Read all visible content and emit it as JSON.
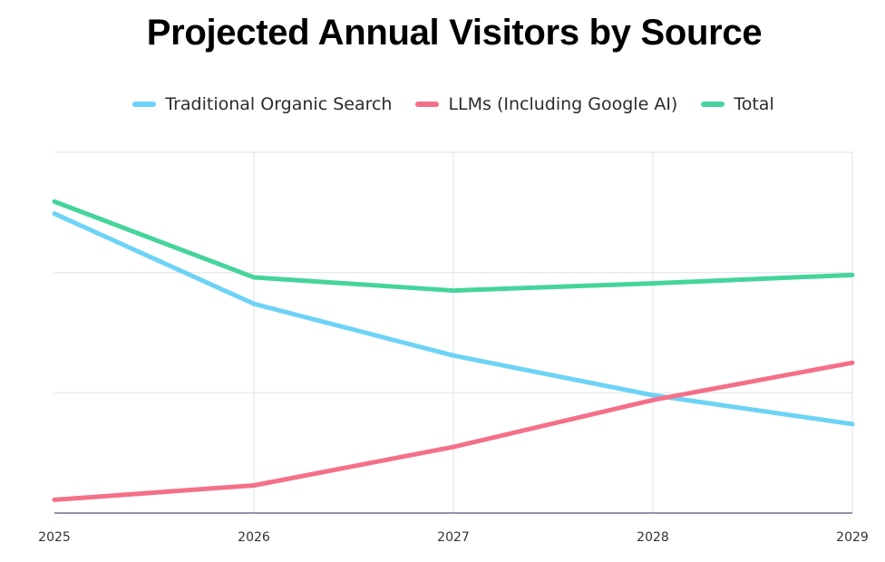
{
  "chart_data": {
    "type": "line",
    "title": "Projected Annual Visitors by Source",
    "xlabel": "",
    "ylabel": "",
    "y_units_note": "No y-axis tick labels shown; values expressed in gridline units (baseline = 0, top gridline = 3)",
    "x": [
      "2025",
      "2026",
      "2027",
      "2028",
      "2029"
    ],
    "ylim": [
      0,
      3
    ],
    "y_gridlines": [
      1,
      2,
      3
    ],
    "grid": true,
    "legend_position": "top-center",
    "series": [
      {
        "name": "Traditional Organic Search",
        "color": "#6dd3f6",
        "values": [
          2.49,
          1.74,
          1.31,
          0.98,
          0.74
        ]
      },
      {
        "name": "LLMs (Including Google AI)",
        "color": "#f47088",
        "values": [
          0.11,
          0.23,
          0.55,
          0.94,
          1.25
        ]
      },
      {
        "name": "Total",
        "color": "#45d49c",
        "values": [
          2.59,
          1.96,
          1.85,
          1.91,
          1.98
        ]
      }
    ]
  },
  "colors": {
    "gridline": "#e3e6ea",
    "baseline": "#4a5070"
  }
}
